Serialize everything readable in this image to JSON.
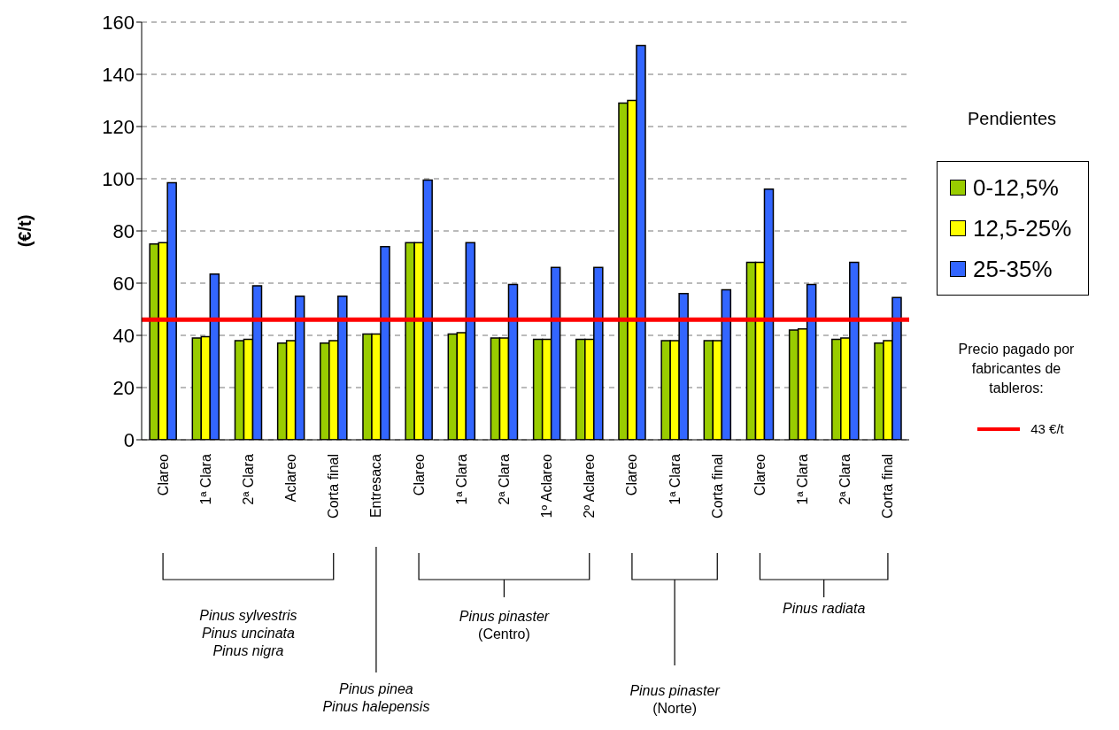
{
  "chart_data": {
    "type": "bar",
    "ylabel": "(€/t)",
    "legend_title": "Pendientes",
    "legend": "right",
    "grid": "y",
    "categories": [
      "Clareo",
      "1ª Clara",
      "2ª Clara",
      "Aclareo",
      "Corta final",
      "Entresaca",
      "Clareo",
      "1ª Clara",
      "2ª Clara",
      "1º Aclareo",
      "2º Aclareo",
      "Clareo",
      "1ª Clara",
      "Corta final",
      "Clareo",
      "1ª Clara",
      "2ª Clara",
      "Corta final"
    ],
    "series": [
      {
        "name": "0-12,5%",
        "color": "#99cc00",
        "values": [
          75,
          39,
          38,
          37,
          37,
          40.5,
          75.5,
          40.5,
          39,
          38.5,
          38.5,
          129,
          38,
          38,
          68,
          42,
          38.5,
          37
        ]
      },
      {
        "name": "12,5-25%",
        "color": "#ffff00",
        "values": [
          75.5,
          39.5,
          38.5,
          38,
          38,
          40.5,
          75.5,
          41,
          39,
          38.5,
          38.5,
          130,
          38,
          38,
          68,
          42.5,
          39,
          38
        ]
      },
      {
        "name": "25-35%",
        "color": "#3366ff",
        "values": [
          98.5,
          63.5,
          59,
          55,
          55,
          74,
          99.5,
          75.5,
          59.5,
          66,
          66,
          151,
          56,
          57.5,
          96,
          59.5,
          68,
          54.5
        ]
      }
    ],
    "ylim": [
      0,
      160
    ],
    "yticks": [
      0,
      20,
      40,
      60,
      80,
      100,
      120,
      140,
      160
    ],
    "ref_lines": [
      {
        "axis": "y",
        "value": 46,
        "label": "43 €/t",
        "color": "#ff0000"
      }
    ],
    "annotations": [
      "Pinus sylvestris\nPinus uncinata\nPinus nigra",
      "Pinus pinea\nPinus halepensis",
      "Pinus pinaster\n(Centro)",
      "Pinus pinaster\n(Norte)",
      "Pinus radiata",
      "Precio pagado por\nfabricantes de\ntableros:"
    ]
  }
}
